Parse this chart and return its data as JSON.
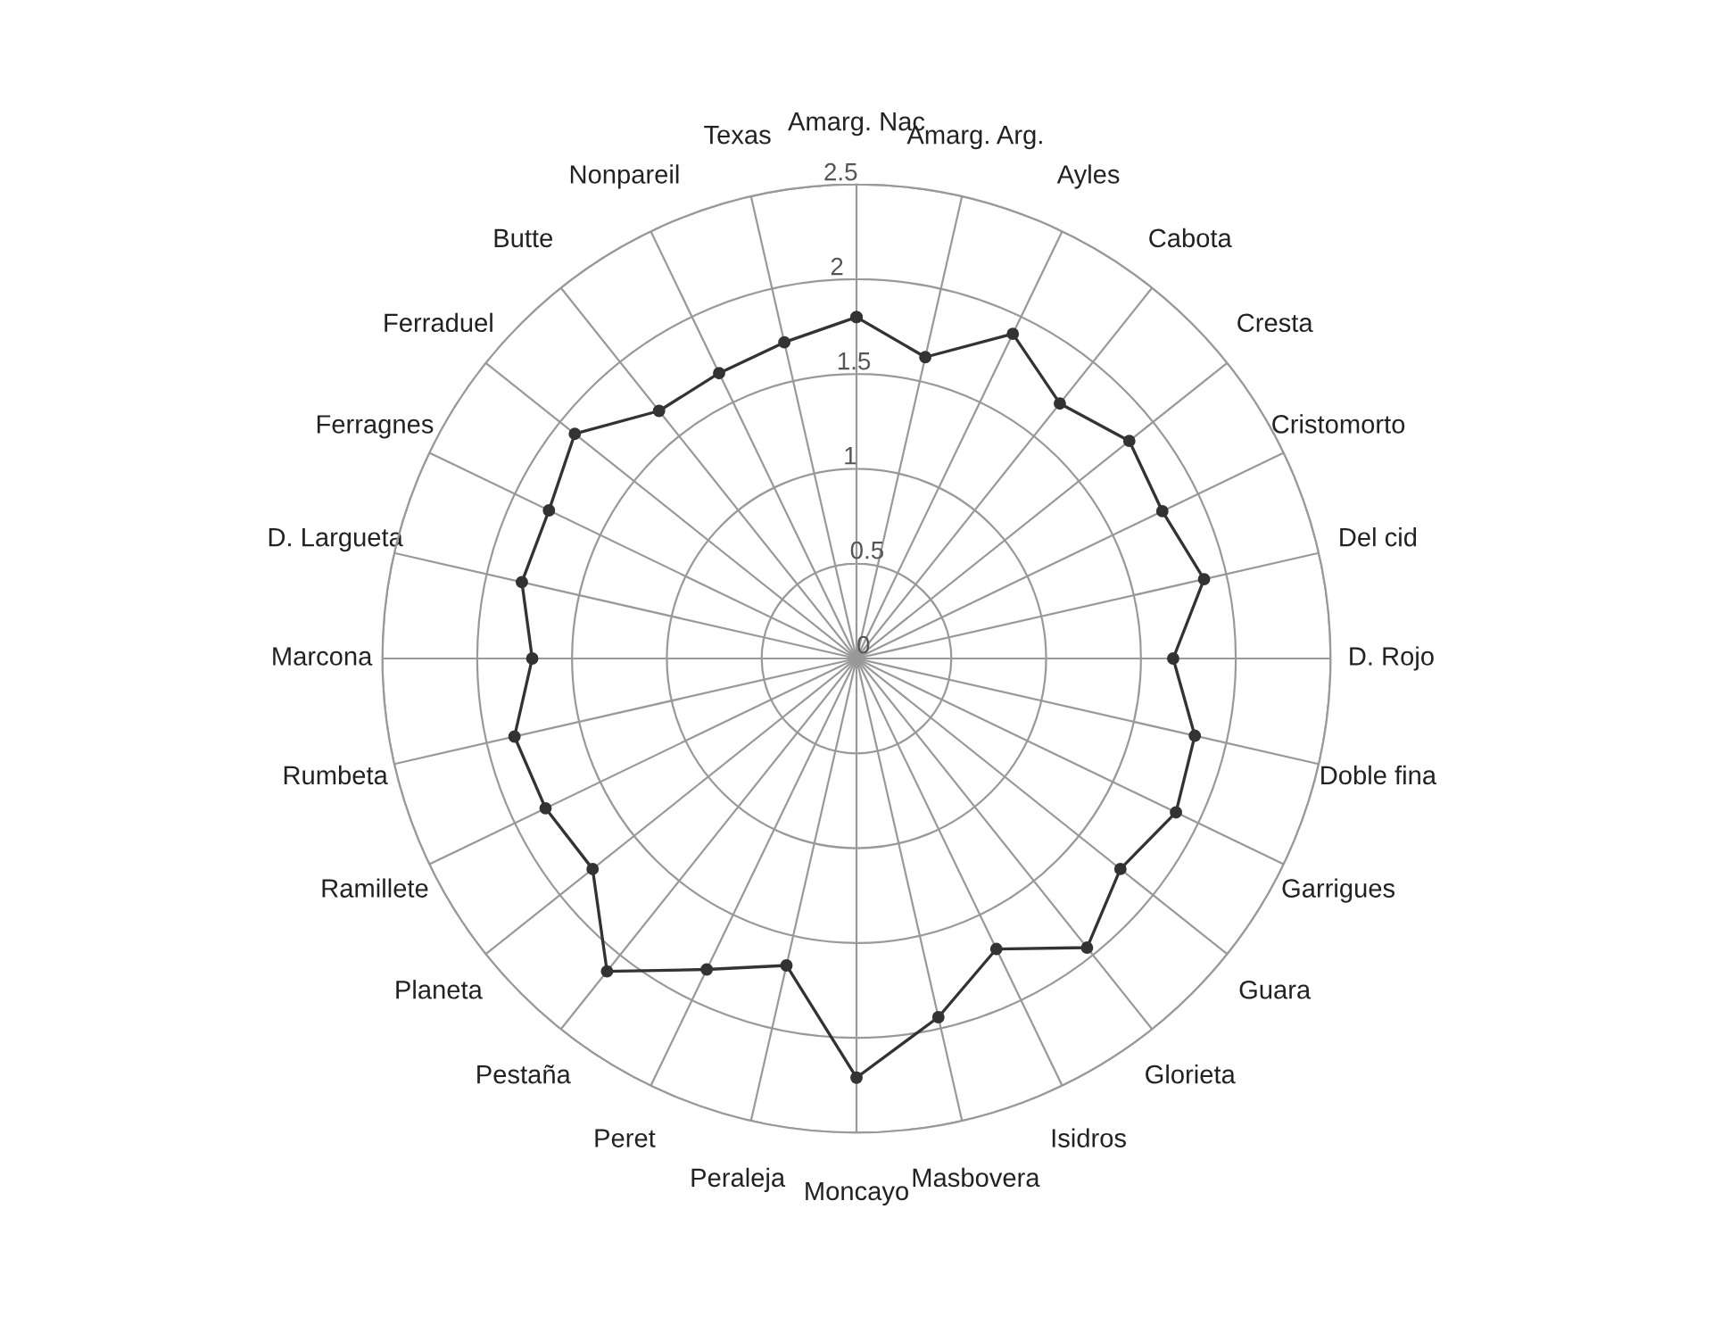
{
  "chart_data": {
    "type": "radar",
    "categories": [
      "Amarg. Nac",
      "Amarg. Arg.",
      "Ayles",
      "Cabota",
      "Cresta",
      "Cristomorto",
      "Del cid",
      "D. Rojo",
      "Doble fina",
      "Garrigues",
      "Guara",
      "Glorieta",
      "Isidros",
      "Masbovera",
      "Moncayo",
      "Peraleja",
      "Peret",
      "Pestaña",
      "Planeta",
      "Ramillete",
      "Rumbeta",
      "Marcona",
      "D. Largueta",
      "Ferragnes",
      "Ferraduel",
      "Butte",
      "Nonpareil",
      "Texas"
    ],
    "series": [
      {
        "color": "#333333",
        "values": [
          1.8,
          1.63,
          1.9,
          1.72,
          1.84,
          1.79,
          1.88,
          1.67,
          1.83,
          1.87,
          1.78,
          1.95,
          1.7,
          1.94,
          2.21,
          1.66,
          1.82,
          2.11,
          1.78,
          1.82,
          1.85,
          1.71,
          1.81,
          1.8,
          1.9,
          1.67,
          1.67,
          1.71
        ]
      }
    ],
    "ylim": [
      0,
      2.5
    ],
    "yticks": [
      0,
      0.5,
      1,
      1.5,
      2,
      2.5
    ],
    "grid": true,
    "marker": "circle",
    "line_style": "solid"
  }
}
